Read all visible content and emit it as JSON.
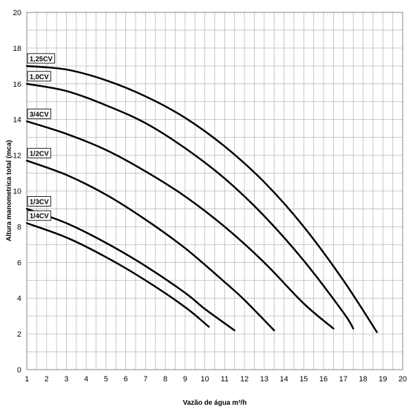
{
  "chart_data": {
    "type": "line",
    "xlabel": "Vazão de água m³/h",
    "ylabel": "Altura manometrica total (mca)",
    "xlim": [
      1,
      20
    ],
    "ylim": [
      0,
      20
    ],
    "x_ticks": [
      "1",
      "2",
      "3",
      "4",
      "5",
      "6",
      "7",
      "8",
      "9",
      "10",
      "11",
      "12",
      "13",
      "14",
      "15",
      "16",
      "17",
      "18",
      "19",
      "20"
    ],
    "y_ticks": [
      "0",
      "2",
      "4",
      "6",
      "8",
      "10",
      "12",
      "14",
      "16",
      "18",
      "20"
    ],
    "minor_grid_x": 0.5,
    "minor_grid_y": 1,
    "grid": true,
    "series": [
      {
        "name": "1,25CV",
        "x": [
          1,
          3,
          5,
          7,
          9,
          11,
          13,
          15,
          17,
          18.7
        ],
        "y": [
          17.0,
          16.8,
          16.2,
          15.3,
          14.1,
          12.5,
          10.5,
          8.0,
          5.0,
          2.1
        ]
      },
      {
        "name": "1,0CV",
        "x": [
          1,
          3,
          5,
          7,
          9,
          11,
          13,
          15,
          17,
          17.5
        ],
        "y": [
          16.0,
          15.6,
          14.8,
          13.8,
          12.4,
          10.7,
          8.6,
          6.1,
          3.2,
          2.3
        ]
      },
      {
        "name": "3/4CV",
        "x": [
          1,
          3,
          5,
          7,
          9,
          11,
          13,
          15,
          16.5
        ],
        "y": [
          13.9,
          13.2,
          12.3,
          11.1,
          9.7,
          8.0,
          6.0,
          3.7,
          2.3
        ]
      },
      {
        "name": "1/2CV",
        "x": [
          1,
          3,
          5,
          7,
          9,
          11,
          12,
          13.5
        ],
        "y": [
          11.7,
          10.9,
          9.8,
          8.4,
          6.8,
          4.9,
          3.9,
          2.2
        ]
      },
      {
        "name": "1/3CV",
        "x": [
          1,
          3,
          5,
          7,
          9,
          10,
          11.5
        ],
        "y": [
          9.0,
          8.2,
          7.1,
          5.8,
          4.3,
          3.4,
          2.2
        ]
      },
      {
        "name": "1/4CV",
        "x": [
          1,
          3,
          5,
          7,
          9,
          10.2
        ],
        "y": [
          8.2,
          7.4,
          6.3,
          5.0,
          3.5,
          2.4
        ]
      }
    ]
  }
}
